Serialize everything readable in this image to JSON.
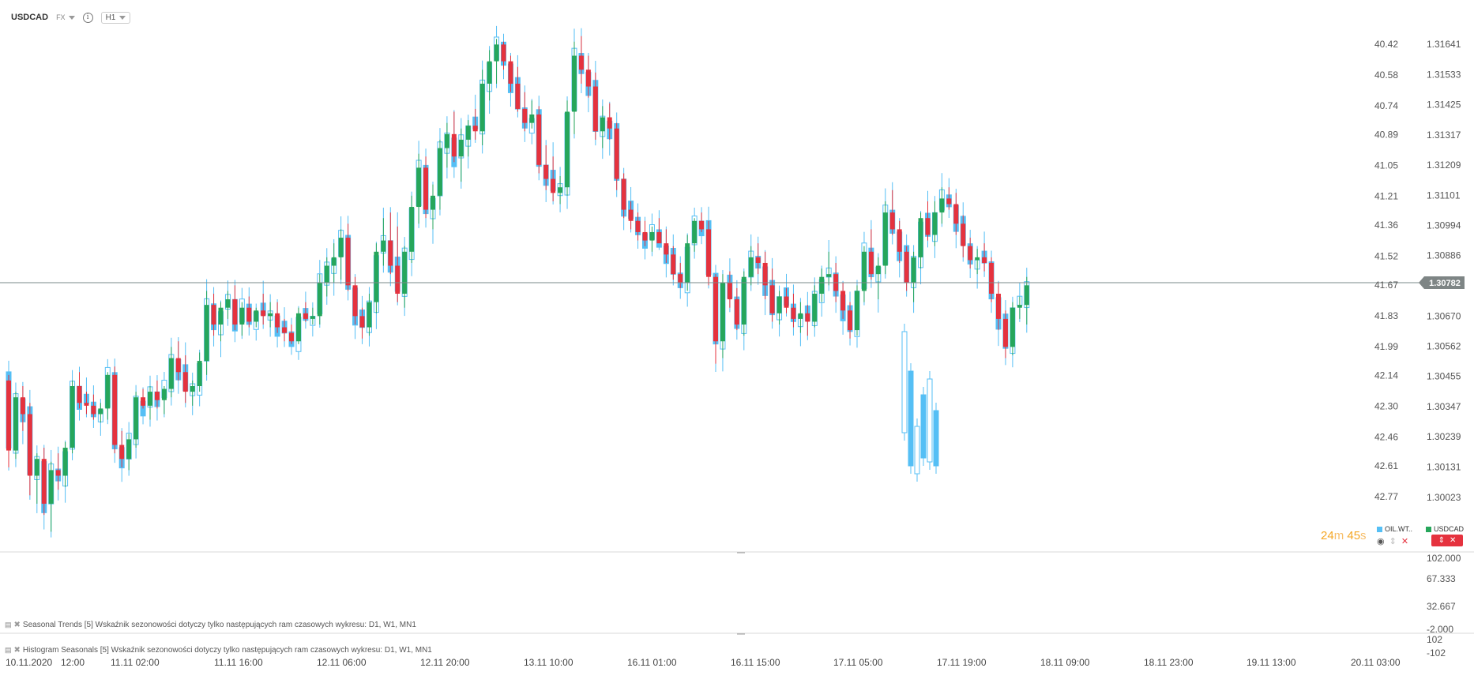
{
  "header": {
    "symbol": "USDCAD",
    "market": "FX",
    "info_icon": "info-icon",
    "timeframe": "H1"
  },
  "colors": {
    "bull": "#26a65b",
    "bear": "#e5323e",
    "overlay": "#55bff5",
    "price_line": "#7a8a8a",
    "price_tag": "#7e8585",
    "timer": "#f5a623"
  },
  "chart_data": {
    "type": "candlestick",
    "grid": false,
    "price_axis": {
      "ticks": [
        "1.31641",
        "1.31533",
        "1.31425",
        "1.31317",
        "1.31209",
        "1.31101",
        "1.30994",
        "1.30886",
        "1.30670",
        "1.30562",
        "1.30455",
        "1.30347",
        "1.30239",
        "1.30131",
        "1.30023"
      ],
      "current_price": "1.30782"
    },
    "overlay_axis": {
      "ticks": [
        "40.42",
        "40.58",
        "40.74",
        "40.89",
        "41.05",
        "41.21",
        "41.36",
        "41.52",
        "41.67",
        "41.83",
        "41.99",
        "42.14",
        "42.30",
        "42.46",
        "42.61",
        "42.77"
      ],
      "inverted": true
    },
    "x_labels": [
      "10.11.2020",
      "12:00",
      "11.11 02:00",
      "11.11 16:00",
      "12.11 06:00",
      "12.11 20:00",
      "13.11 10:00",
      "16.11 01:00",
      "16.11 15:00",
      "17.11 05:00",
      "17.11 19:00",
      "18.11 09:00",
      "18.11 23:00",
      "19.11 13:00",
      "20.11 03:00"
    ],
    "usdcad_ohlc": [
      [
        1.3044,
        1.3046,
        1.3013,
        1.3019
      ],
      [
        1.3019,
        1.304,
        1.3016,
        1.3038
      ],
      [
        1.3038,
        1.3042,
        1.3026,
        1.3032
      ],
      [
        1.3032,
        1.3036,
        1.3003,
        1.301
      ],
      [
        1.301,
        1.3018,
        1.3,
        1.3016
      ],
      [
        1.3016,
        1.302,
        1.2996,
        1.3
      ],
      [
        1.3,
        1.3015,
        1.299,
        1.3012
      ],
      [
        1.3012,
        1.3018,
        1.3005,
        1.301
      ],
      [
        1.301,
        1.3022,
        1.3006,
        1.302
      ],
      [
        1.302,
        1.3044,
        1.3018,
        1.3042
      ],
      [
        1.3042,
        1.3047,
        1.3034,
        1.3036
      ],
      [
        1.3036,
        1.304,
        1.3032,
        1.3035
      ],
      [
        1.3035,
        1.3039,
        1.303,
        1.3032
      ],
      [
        1.3032,
        1.3036,
        1.3029,
        1.3034
      ],
      [
        1.3034,
        1.3047,
        1.303,
        1.3046
      ],
      [
        1.3046,
        1.3049,
        1.3018,
        1.3021
      ],
      [
        1.3021,
        1.3026,
        1.3013,
        1.3016
      ],
      [
        1.3016,
        1.3025,
        1.3012,
        1.3023
      ],
      [
        1.3023,
        1.304,
        1.302,
        1.3038
      ],
      [
        1.3038,
        1.3041,
        1.3034,
        1.3035
      ],
      [
        1.3035,
        1.3042,
        1.303,
        1.304
      ],
      [
        1.304,
        1.3044,
        1.3034,
        1.3037
      ],
      [
        1.3037,
        1.3042,
        1.3032,
        1.3041
      ],
      [
        1.3041,
        1.3056,
        1.3038,
        1.3052
      ],
      [
        1.3052,
        1.3058,
        1.3044,
        1.3047
      ],
      [
        1.3047,
        1.3053,
        1.3036,
        1.304
      ],
      [
        1.304,
        1.3044,
        1.3035,
        1.3042
      ],
      [
        1.3042,
        1.3054,
        1.304,
        1.3051
      ],
      [
        1.3051,
        1.3076,
        1.3046,
        1.3071
      ],
      [
        1.3071,
        1.3075,
        1.306,
        1.3064
      ],
      [
        1.3064,
        1.3072,
        1.3058,
        1.307
      ],
      [
        1.307,
        1.3076,
        1.3066,
        1.3073
      ],
      [
        1.3073,
        1.3078,
        1.3062,
        1.3064
      ],
      [
        1.3064,
        1.3072,
        1.306,
        1.307
      ],
      [
        1.307,
        1.3074,
        1.3063,
        1.3065
      ],
      [
        1.3065,
        1.307,
        1.3063,
        1.3069
      ],
      [
        1.3069,
        1.3075,
        1.3064,
        1.3067
      ],
      [
        1.3067,
        1.3072,
        1.3063,
        1.3068
      ],
      [
        1.3068,
        1.3072,
        1.3061,
        1.3063
      ],
      [
        1.3063,
        1.3066,
        1.3058,
        1.3061
      ],
      [
        1.3061,
        1.3064,
        1.3057,
        1.3058
      ],
      [
        1.3058,
        1.307,
        1.3057,
        1.3068
      ],
      [
        1.3068,
        1.3072,
        1.3065,
        1.3066
      ],
      [
        1.3066,
        1.307,
        1.3064,
        1.3067
      ],
      [
        1.3067,
        1.3082,
        1.3064,
        1.3079
      ],
      [
        1.3079,
        1.3088,
        1.3074,
        1.3085
      ],
      [
        1.3085,
        1.3093,
        1.3079,
        1.3088
      ],
      [
        1.3088,
        1.3098,
        1.308,
        1.3095
      ],
      [
        1.3095,
        1.31,
        1.3076,
        1.3078
      ],
      [
        1.3078,
        1.3081,
        1.3064,
        1.3067
      ],
      [
        1.3067,
        1.307,
        1.3059,
        1.3063
      ],
      [
        1.3063,
        1.3075,
        1.306,
        1.3072
      ],
      [
        1.3072,
        1.3093,
        1.3068,
        1.309
      ],
      [
        1.309,
        1.3102,
        1.3085,
        1.3094
      ],
      [
        1.3094,
        1.3104,
        1.3082,
        1.3085
      ],
      [
        1.3085,
        1.3099,
        1.3072,
        1.3075
      ],
      [
        1.3075,
        1.3092,
        1.307,
        1.309
      ],
      [
        1.309,
        1.311,
        1.3086,
        1.3106
      ],
      [
        1.3106,
        1.3125,
        1.31,
        1.312
      ],
      [
        1.312,
        1.3124,
        1.3102,
        1.3105
      ],
      [
        1.3105,
        1.3114,
        1.3098,
        1.311
      ],
      [
        1.311,
        1.313,
        1.3105,
        1.3127
      ],
      [
        1.3127,
        1.3136,
        1.312,
        1.3132
      ],
      [
        1.3132,
        1.314,
        1.3122,
        1.3124
      ],
      [
        1.3124,
        1.3134,
        1.3115,
        1.313
      ],
      [
        1.313,
        1.3137,
        1.3124,
        1.3135
      ],
      [
        1.3135,
        1.3141,
        1.313,
        1.3133
      ],
      [
        1.3133,
        1.3155,
        1.3128,
        1.315
      ],
      [
        1.315,
        1.3162,
        1.3144,
        1.3158
      ],
      [
        1.3158,
        1.3166,
        1.315,
        1.3164
      ],
      [
        1.3164,
        1.3165,
        1.3155,
        1.3158
      ],
      [
        1.3158,
        1.316,
        1.3147,
        1.315
      ],
      [
        1.315,
        1.3156,
        1.314,
        1.3141
      ],
      [
        1.3141,
        1.3147,
        1.3133,
        1.3136
      ],
      [
        1.3136,
        1.3144,
        1.3134,
        1.3139
      ],
      [
        1.3139,
        1.3142,
        1.3118,
        1.3121
      ],
      [
        1.3121,
        1.3128,
        1.3112,
        1.3116
      ],
      [
        1.3116,
        1.3124,
        1.3108,
        1.3111
      ],
      [
        1.3111,
        1.3117,
        1.3107,
        1.3113
      ],
      [
        1.3113,
        1.3144,
        1.311,
        1.314
      ],
      [
        1.314,
        1.3165,
        1.3132,
        1.316
      ],
      [
        1.316,
        1.3167,
        1.315,
        1.3155
      ],
      [
        1.3155,
        1.316,
        1.3145,
        1.3149
      ],
      [
        1.3149,
        1.3154,
        1.313,
        1.3133
      ],
      [
        1.3133,
        1.3142,
        1.3127,
        1.3138
      ],
      [
        1.3138,
        1.3143,
        1.313,
        1.3134
      ],
      [
        1.3134,
        1.3136,
        1.3112,
        1.3116
      ],
      [
        1.3116,
        1.3118,
        1.3102,
        1.3105
      ],
      [
        1.3105,
        1.3108,
        1.3098,
        1.3101
      ],
      [
        1.3101,
        1.3104,
        1.3094,
        1.3097
      ],
      [
        1.3097,
        1.3101,
        1.3092,
        1.3094
      ],
      [
        1.3094,
        1.3099,
        1.309,
        1.3097
      ],
      [
        1.3097,
        1.3102,
        1.3094,
        1.3093
      ],
      [
        1.3093,
        1.3098,
        1.3086,
        1.3089
      ],
      [
        1.3089,
        1.3092,
        1.308,
        1.3082
      ],
      [
        1.3082,
        1.3086,
        1.3077,
        1.3079
      ],
      [
        1.3079,
        1.3096,
        1.3076,
        1.3093
      ],
      [
        1.3093,
        1.3102,
        1.309,
        1.3101
      ],
      [
        1.3101,
        1.3104,
        1.3097,
        1.3098
      ],
      [
        1.3098,
        1.3101,
        1.3078,
        1.3081
      ],
      [
        1.3081,
        1.3082,
        1.305,
        1.3058
      ],
      [
        1.3058,
        1.3082,
        1.3052,
        1.3079
      ],
      [
        1.3079,
        1.3083,
        1.307,
        1.3073
      ],
      [
        1.3073,
        1.3077,
        1.3062,
        1.3064
      ],
      [
        1.3064,
        1.3083,
        1.306,
        1.3081
      ],
      [
        1.3081,
        1.3092,
        1.3078,
        1.3088
      ],
      [
        1.3088,
        1.3093,
        1.3082,
        1.3086
      ],
      [
        1.3086,
        1.309,
        1.3073,
        1.3078
      ],
      [
        1.3078,
        1.3084,
        1.3065,
        1.3068
      ],
      [
        1.3068,
        1.3076,
        1.3064,
        1.3074
      ],
      [
        1.3074,
        1.3077,
        1.3068,
        1.307
      ],
      [
        1.307,
        1.3075,
        1.3063,
        1.3066
      ],
      [
        1.3066,
        1.3072,
        1.3061,
        1.3068
      ],
      [
        1.3068,
        1.3071,
        1.306,
        1.3065
      ],
      [
        1.3065,
        1.3078,
        1.3063,
        1.3075
      ],
      [
        1.3075,
        1.3084,
        1.3072,
        1.3081
      ],
      [
        1.3081,
        1.309,
        1.3078,
        1.3082
      ],
      [
        1.3082,
        1.3086,
        1.3072,
        1.3076
      ],
      [
        1.3076,
        1.3079,
        1.3066,
        1.3069
      ],
      [
        1.3069,
        1.3072,
        1.3059,
        1.3062
      ],
      [
        1.3062,
        1.3078,
        1.306,
        1.3076
      ],
      [
        1.3076,
        1.3092,
        1.3072,
        1.309
      ],
      [
        1.309,
        1.3098,
        1.308,
        1.3082
      ],
      [
        1.3082,
        1.3088,
        1.3073,
        1.3085
      ],
      [
        1.3085,
        1.3108,
        1.3082,
        1.3104
      ],
      [
        1.3104,
        1.3112,
        1.3096,
        1.3098
      ],
      [
        1.3098,
        1.3101,
        1.3086,
        1.309
      ],
      [
        1.309,
        1.3092,
        1.3076,
        1.3079
      ],
      [
        1.3079,
        1.309,
        1.3072,
        1.3088
      ],
      [
        1.3088,
        1.3104,
        1.3084,
        1.3102
      ],
      [
        1.3102,
        1.3108,
        1.3094,
        1.3096
      ],
      [
        1.3096,
        1.3108,
        1.3092,
        1.3104
      ],
      [
        1.3104,
        1.3113,
        1.31,
        1.3109
      ],
      [
        1.3109,
        1.3113,
        1.3105,
        1.3107
      ],
      [
        1.3107,
        1.3111,
        1.3096,
        1.31
      ],
      [
        1.31,
        1.3103,
        1.3088,
        1.3092
      ],
      [
        1.3092,
        1.3095,
        1.3084,
        1.3087
      ],
      [
        1.3087,
        1.3091,
        1.3082,
        1.3088
      ],
      [
        1.3088,
        1.3093,
        1.3083,
        1.3086
      ],
      [
        1.3086,
        1.3088,
        1.3072,
        1.3075
      ],
      [
        1.3075,
        1.3079,
        1.3062,
        1.3066
      ],
      [
        1.3066,
        1.3069,
        1.3052,
        1.3056
      ],
      [
        1.3056,
        1.3072,
        1.3053,
        1.307
      ],
      [
        1.307,
        1.3074,
        1.3066,
        1.3071
      ],
      [
        1.3071,
        1.3081,
        1.3064,
        1.3078
      ]
    ]
  },
  "price_tag": "1.30782",
  "timer": {
    "minutes": "24",
    "m": "m",
    "seconds": "45",
    "s": "s"
  },
  "legend": {
    "oil_label": "OIL.WT..",
    "usdcad_label": "USDCAD",
    "eye_icon": "eye-icon",
    "move_icon": "up-down-arrows-icon",
    "close_icon": "close-icon"
  },
  "panels": {
    "seasonal_trends": {
      "label": "Seasonal Trends [5] Wskaźnik sezonowości dotyczy tylko następujących ram czasowych wykresu: D1, W1, MN1",
      "ticks": [
        "102.000",
        "67.333",
        "32.667",
        "-2.000"
      ]
    },
    "histogram_seasonals": {
      "label": "Histogram Seasonals [5] Wskaźnik sezonowości dotyczy tylko następujących ram czasowych wykresu: D1, W1, MN1",
      "ticks": [
        "102",
        "-102"
      ]
    }
  }
}
